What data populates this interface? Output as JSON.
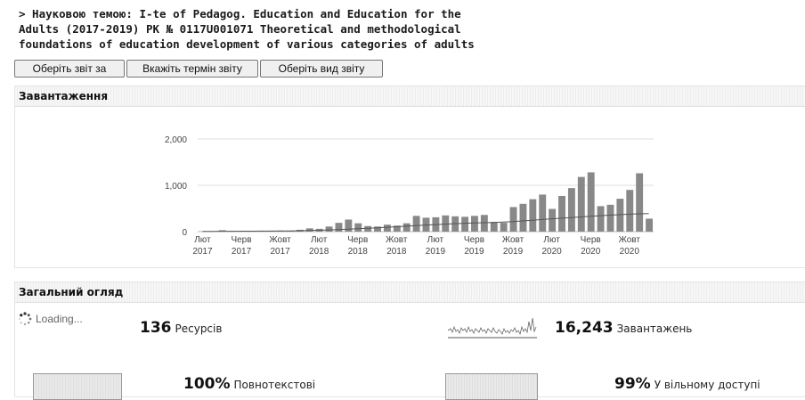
{
  "title": "> Науковою темою: I-te of Pedagog. Education and Education for the Adults (2017-2019) РК № 0117U001071 Theoretical and methodological foundations of education development of various categories of adults",
  "title_lines": [
    "> Науковою темою: I-te of Pedagog. Education and Education for the",
    "Adults (2017-2019) РК № 0117U001071 Theoretical and methodological",
    "foundations of education development of various categories of adults"
  ],
  "buttons": {
    "report_for": "Оберіть звіт за",
    "report_term": "Вкажіть термін звіту",
    "report_type": "Оберіть вид звіту"
  },
  "downloads_panel": {
    "header": "Завантаження"
  },
  "overview_panel": {
    "header": "Загальний огляд",
    "loading": "Loading...",
    "resources": {
      "value": "136",
      "label": "Ресурсів"
    },
    "downloads": {
      "value": "16,243",
      "label": "Завантажень"
    },
    "fulltext": {
      "value": "100%",
      "label": "Повнотекстові"
    },
    "open_access": {
      "value": "99%",
      "label": "У вільному доступі"
    }
  },
  "colors": {
    "bar": "#888888",
    "trend": "#555555",
    "grid": "#dddddd"
  },
  "chart_data": {
    "type": "bar",
    "title": "",
    "ylim": [
      0,
      2000
    ],
    "yticks": [
      "0",
      "1,000",
      "2,000"
    ],
    "grid": true,
    "x_tick_labels": [
      {
        "month": "Лют",
        "year": "2017"
      },
      {
        "month": "Черв",
        "year": "2017"
      },
      {
        "month": "Жовт",
        "year": "2017"
      },
      {
        "month": "Лют",
        "year": "2018"
      },
      {
        "month": "Черв",
        "year": "2018"
      },
      {
        "month": "Жовт",
        "year": "2018"
      },
      {
        "month": "Лют",
        "year": "2019"
      },
      {
        "month": "Черв",
        "year": "2019"
      },
      {
        "month": "Жовт",
        "year": "2019"
      },
      {
        "month": "Лют",
        "year": "2020"
      },
      {
        "month": "Черв",
        "year": "2020"
      },
      {
        "month": "Жовт",
        "year": "2020"
      }
    ],
    "start": "2017-02",
    "series": [
      {
        "name": "",
        "type": "bar",
        "values": [
          5,
          10,
          30,
          15,
          10,
          15,
          10,
          15,
          20,
          20,
          40,
          70,
          60,
          110,
          190,
          260,
          180,
          120,
          110,
          150,
          130,
          180,
          340,
          300,
          310,
          350,
          330,
          320,
          340,
          360,
          210,
          190,
          530,
          600,
          700,
          800,
          490,
          770,
          940,
          1180,
          1280,
          550,
          580,
          710,
          900,
          1260,
          280
        ]
      },
      {
        "name": "",
        "type": "line",
        "values": [
          5,
          6,
          7,
          8,
          9,
          10,
          11,
          12,
          14,
          16,
          20,
          24,
          30,
          36,
          44,
          52,
          62,
          72,
          82,
          94,
          106,
          118,
          130,
          142,
          152,
          162,
          172,
          180,
          186,
          192,
          198,
          206,
          216,
          230,
          246,
          262,
          276,
          290,
          304,
          318,
          332,
          344,
          356,
          366,
          376,
          384,
          390
        ]
      }
    ]
  }
}
